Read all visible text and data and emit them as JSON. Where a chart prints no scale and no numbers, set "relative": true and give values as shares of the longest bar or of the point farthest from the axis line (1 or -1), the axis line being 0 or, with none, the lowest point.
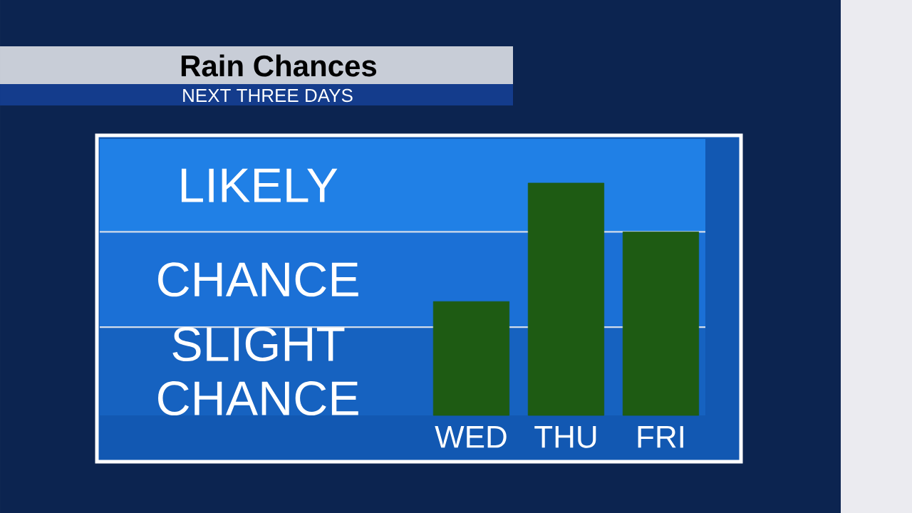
{
  "chart_data": {
    "type": "bar",
    "title": "Rain Chances",
    "subtitle": "NEXT THREE DAYS",
    "categories": [
      "WED",
      "THU",
      "FRI"
    ],
    "values": [
      0.49,
      1,
      0.79
    ],
    "color": "#1e5b13",
    "relative": true,
    "bands": [
      {
        "axis": "y",
        "from": 0,
        "to": 0.38,
        "label": "SLIGHT CHANCE",
        "color": "#1662c0"
      },
      {
        "axis": "y",
        "from": 0.38,
        "to": 0.79,
        "label": "CHANCE",
        "color": "#1b70d6"
      },
      {
        "axis": "y",
        "from": 0.79,
        "to": 1.19,
        "label": "LIKELY",
        "color": "#2080e6"
      }
    ],
    "ref_lines": [
      {
        "axis": "y",
        "value": 0.38,
        "color": "#d2dceb"
      },
      {
        "axis": "y",
        "value": 0.79,
        "color": "#d2dceb"
      }
    ]
  }
}
